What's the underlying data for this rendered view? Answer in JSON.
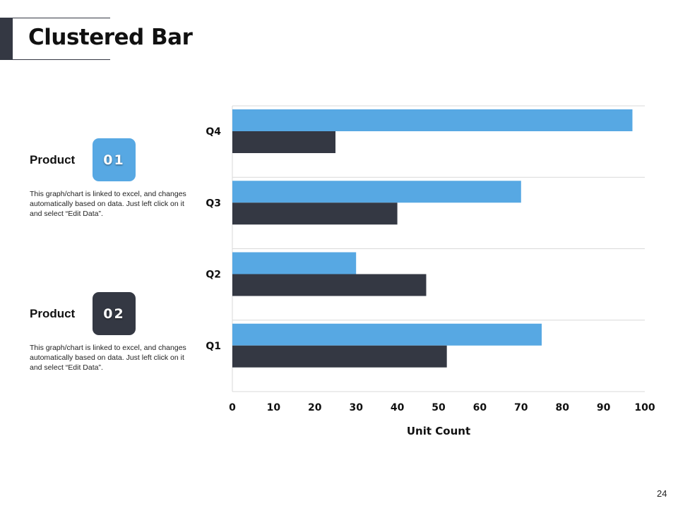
{
  "header": {
    "title": "Clustered Bar"
  },
  "products": [
    {
      "label": "Product",
      "badge": "01",
      "description": "This graph/chart is linked to excel, and changes automatically based on data. Just left click on it and select “Edit Data”."
    },
    {
      "label": "Product",
      "badge": "02",
      "description": "This graph/chart is linked to excel, and changes automatically based on data. Just left click on it and select “Edit Data”."
    }
  ],
  "page_number": "24",
  "colors": {
    "series1": "#57a8e3",
    "series2": "#343843"
  },
  "chart_data": {
    "type": "bar",
    "orientation": "horizontal",
    "title": "",
    "xlabel": "Unit Count",
    "ylabel": "",
    "categories": [
      "Q1",
      "Q2",
      "Q3",
      "Q4"
    ],
    "xlim": [
      0,
      100
    ],
    "xticks": [
      0,
      10,
      20,
      30,
      40,
      50,
      60,
      70,
      80,
      90,
      100
    ],
    "grid": true,
    "series": [
      {
        "name": "Product 01",
        "color": "#57a8e3",
        "values": [
          75,
          30,
          70,
          97
        ]
      },
      {
        "name": "Product 02",
        "color": "#343843",
        "values": [
          52,
          47,
          40,
          25
        ]
      }
    ]
  }
}
